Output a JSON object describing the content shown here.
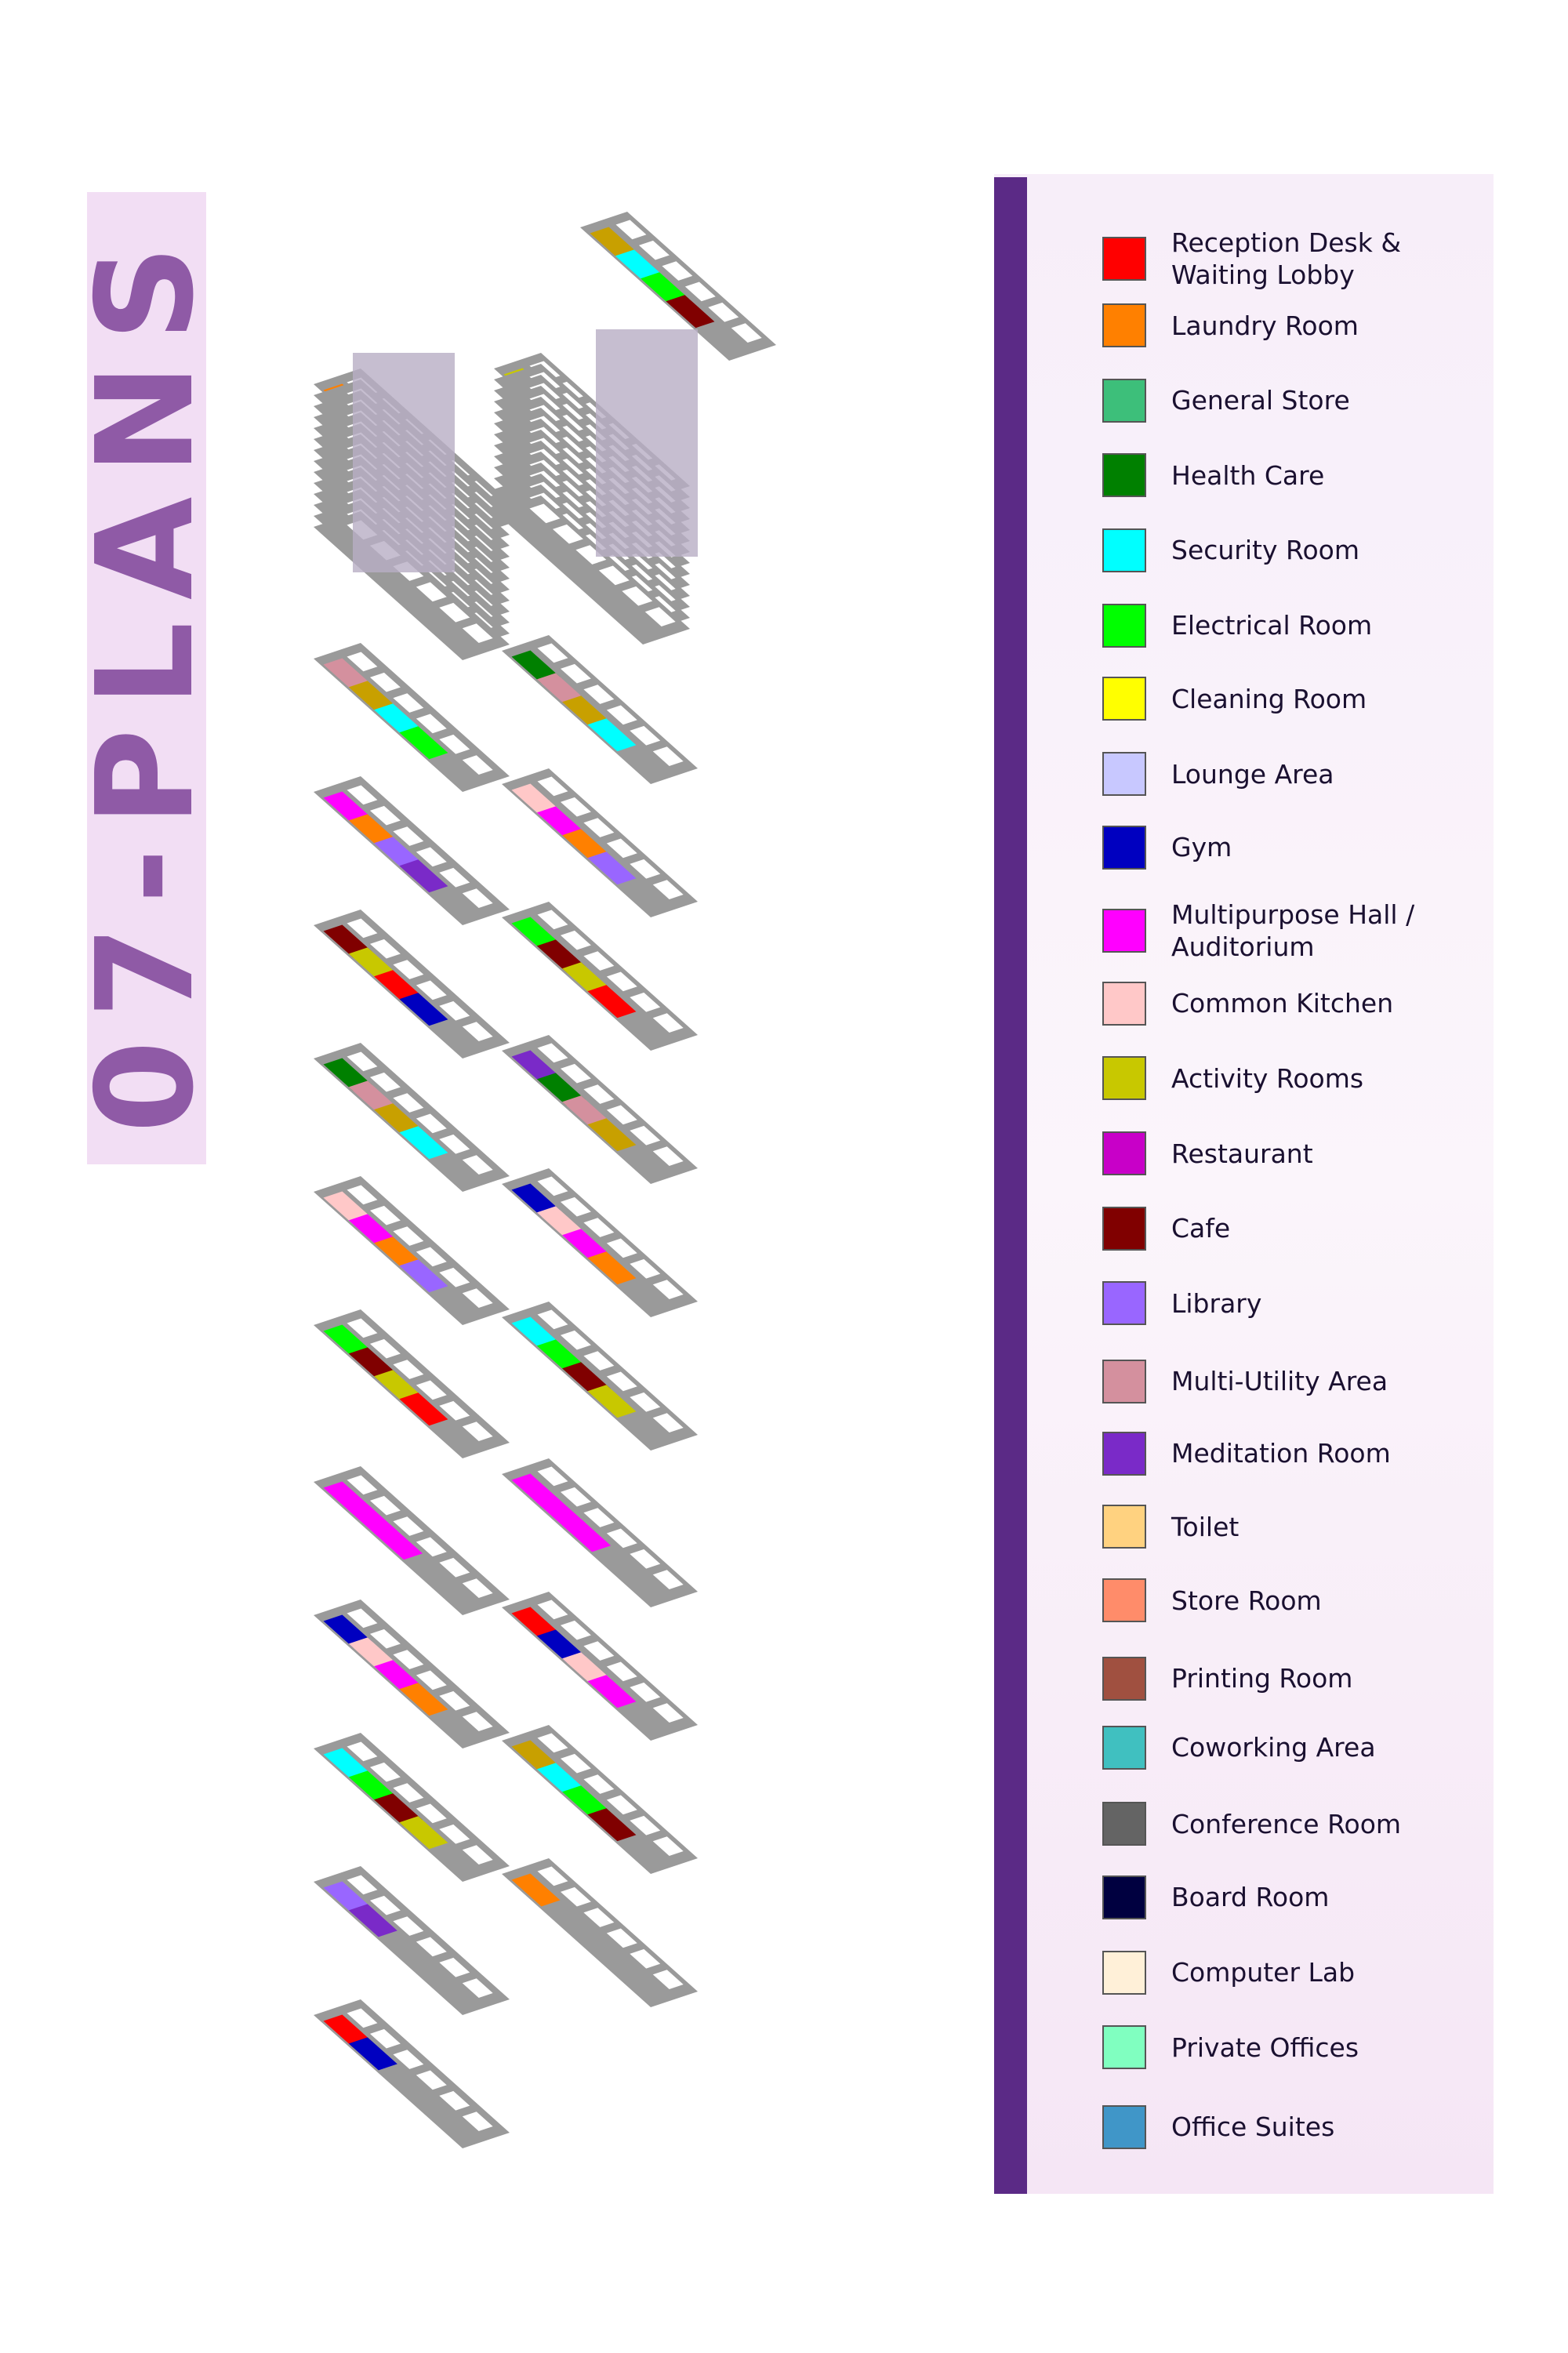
{
  "title": "07-PLANS",
  "legend": {
    "items": [
      {
        "label": "Reception Desk & Waiting Lobby",
        "color": "#ff0000"
      },
      {
        "label": "Laundry Room",
        "color": "#ff8000"
      },
      {
        "label": "General Store",
        "color": "#3dbf7a"
      },
      {
        "label": "Health Care",
        "color": "#008000"
      },
      {
        "label": "Security Room",
        "color": "#00ffff"
      },
      {
        "label": "Electrical Room",
        "color": "#00ff00"
      },
      {
        "label": "Cleaning Room",
        "color": "#ffff00"
      },
      {
        "label": "Lounge Area",
        "color": "#c8c8ff"
      },
      {
        "label": "Gym",
        "color": "#0000c0"
      },
      {
        "label": "Multipurpose Hall / Auditorium",
        "color": "#ff00ff"
      },
      {
        "label": "Common Kitchen",
        "color": "#ffc8c8"
      },
      {
        "label": "Activity Rooms",
        "color": "#c8c800"
      },
      {
        "label": "Restaurant",
        "color": "#c800c8"
      },
      {
        "label": "Cafe",
        "color": "#800000"
      },
      {
        "label": "Library",
        "color": "#9966ff"
      },
      {
        "label": "Multi-Utility Area",
        "color": "#d4909e"
      },
      {
        "label": "Meditation Room",
        "color": "#7a2ac8"
      },
      {
        "label": "Toilet",
        "color": "#ffd280"
      },
      {
        "label": "Store Room",
        "color": "#ff8c6a"
      },
      {
        "label": "Printing Room",
        "color": "#a05040"
      },
      {
        "label": "Coworking Area",
        "color": "#40c0c0"
      },
      {
        "label": "Conference Room",
        "color": "#646464"
      },
      {
        "label": "Board Room",
        "color": "#000040"
      },
      {
        "label": "Computer Lab",
        "color": "#fff0d8"
      },
      {
        "label": "Private Offices",
        "color": "#80ffc0"
      },
      {
        "label": "Office Suites",
        "color": "#4096c8"
      }
    ]
  }
}
